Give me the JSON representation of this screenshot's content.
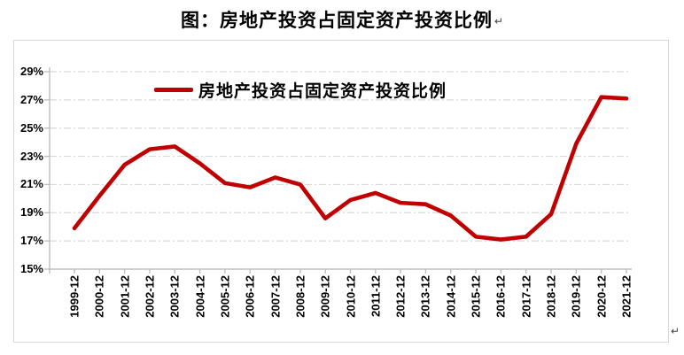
{
  "page": {
    "title": "图：房地产投资占固定资产投资比例",
    "title_paragraph_mark": "↵",
    "trailing_paragraph_mark": "↵"
  },
  "chart_data": {
    "type": "line",
    "title": "",
    "legend_position": "top-center-inside",
    "grid": "horizontal-dash-dot",
    "ylim": [
      15,
      29
    ],
    "ytick_step": 2,
    "ytick_labels": [
      "15%",
      "17%",
      "19%",
      "21%",
      "23%",
      "25%",
      "27%",
      "29%"
    ],
    "categories": [
      "1999-12",
      "2000-12",
      "2001-12",
      "2002-12",
      "2003-12",
      "2004-12",
      "2005-12",
      "2006-12",
      "2007-12",
      "2008-12",
      "2009-12",
      "2010-12",
      "2011-12",
      "2012-12",
      "2013-12",
      "2014-12",
      "2015-12",
      "2016-12",
      "2017-12",
      "2018-12",
      "2019-12",
      "2020-12",
      "2021-12"
    ],
    "series": [
      {
        "name": "房地产投资占固定资产投资比例",
        "color": "#C00000",
        "values": [
          17.9,
          20.2,
          22.4,
          23.5,
          23.7,
          22.5,
          21.1,
          20.8,
          21.5,
          21.0,
          18.6,
          19.9,
          20.4,
          19.7,
          19.6,
          18.8,
          17.3,
          17.1,
          17.3,
          18.9,
          23.9,
          27.2,
          27.1
        ]
      }
    ],
    "colors": {
      "series": "#C00000",
      "grid": "#D9D9D9",
      "axis": "#BFBFBF",
      "text": "#000000",
      "frame_border": "#D7D7D7"
    }
  }
}
